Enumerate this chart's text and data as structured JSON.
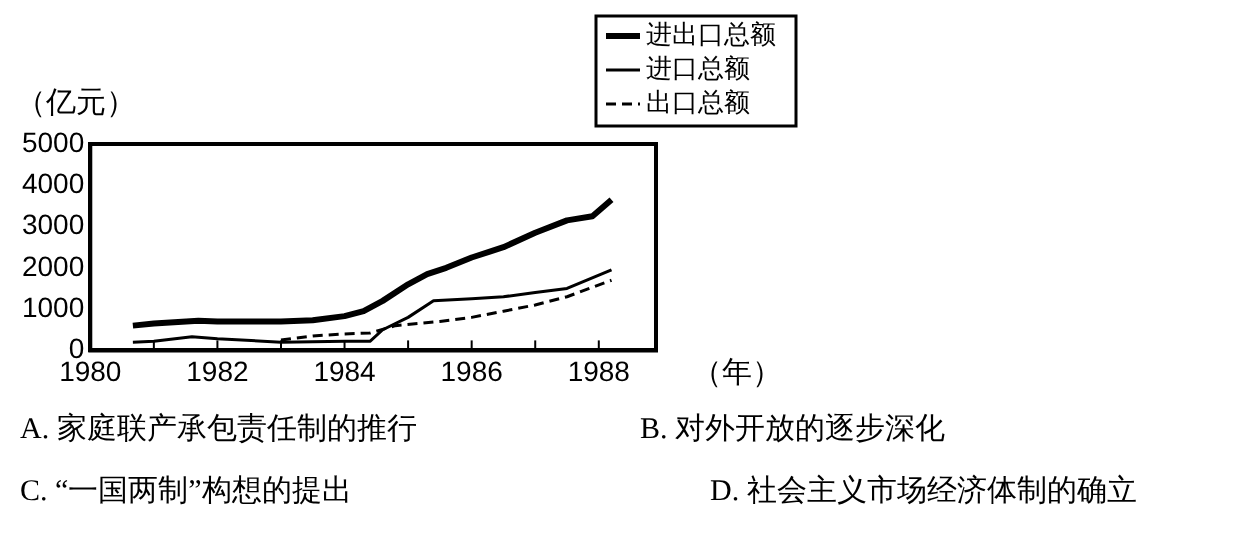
{
  "chart_data": {
    "type": "line",
    "ylabel": "（亿元）",
    "xlabel": "（年）",
    "xlim": [
      1980,
      1988.9
    ],
    "xticks": [
      1980,
      1982,
      1984,
      1986,
      1988
    ],
    "ylim": [
      0,
      5000
    ],
    "yticks": [
      0,
      1000,
      2000,
      3000,
      4000,
      5000
    ],
    "grid": false,
    "legend": "top right",
    "marker": "none",
    "series": [
      {
        "name": "进出口总额",
        "color": "#000000",
        "line_style": "solid",
        "x": [
          1980.67,
          1981,
          1981.7,
          1982,
          1983,
          1983.5,
          1984,
          1984.3,
          1984.6,
          1985,
          1985.3,
          1985.6,
          1986,
          1986.5,
          1987,
          1987.5,
          1987.9,
          1988.2
        ],
        "values": [
          600,
          650,
          720,
          700,
          700,
          730,
          830,
          950,
          1200,
          1600,
          1850,
          2000,
          2250,
          2500,
          2850,
          3150,
          3250,
          3650
        ]
      },
      {
        "name": "进口总额",
        "color": "#000000",
        "line_style": "solid",
        "x": [
          1980.67,
          1981,
          1981.6,
          1982,
          1983,
          1984,
          1984.4,
          1984.6,
          1985,
          1985.4,
          1986,
          1986.5,
          1987,
          1987.5,
          1988.2
        ],
        "values": [
          200,
          220,
          330,
          280,
          200,
          220,
          220,
          500,
          800,
          1200,
          1250,
          1300,
          1400,
          1500,
          1950
        ]
      },
      {
        "name": "出口总额",
        "color": "#000000",
        "line_style": "dashed",
        "x": [
          1983,
          1983.5,
          1984,
          1984.4,
          1984.8,
          1985.5,
          1986,
          1986.5,
          1987,
          1987.5,
          1988.2
        ],
        "values": [
          250,
          350,
          400,
          420,
          600,
          700,
          800,
          950,
          1100,
          1300,
          1700
        ]
      }
    ],
    "annotations": [
      "A. 家庭联产承包责任制的推行",
      "B. 对外开放的逐步深化",
      "C. “一国两制”构想的提出",
      "D. 社会主义市场经济体制的确立"
    ]
  }
}
